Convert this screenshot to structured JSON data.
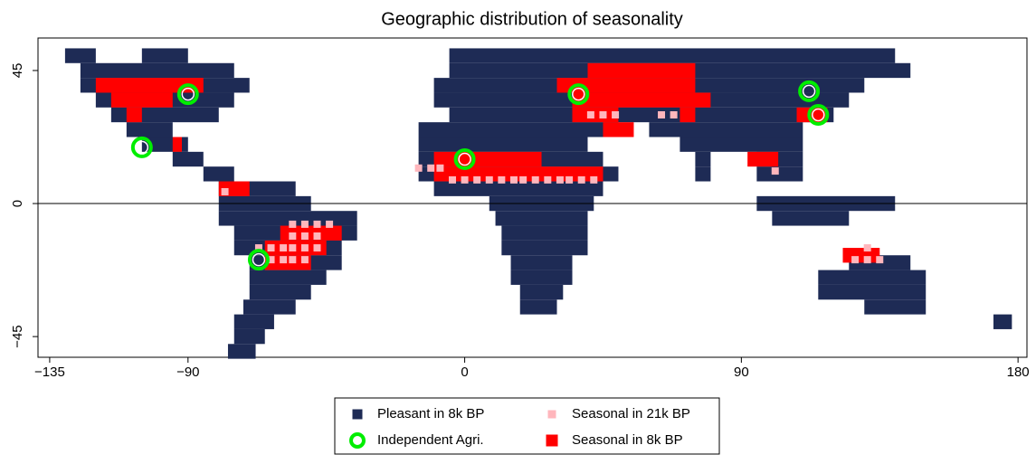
{
  "chart_data": {
    "type": "map-cells",
    "title": "Geographic distribution of seasonality",
    "xlim": [
      -138.8,
      182.9
    ],
    "ylim": [
      -52,
      56
    ],
    "xticks": [
      {
        "value": -135,
        "label": "−135"
      },
      {
        "value": -90,
        "label": "−90"
      },
      0,
      90,
      180
    ],
    "yticks": [
      {
        "value": -45,
        "label": "−45"
      },
      0,
      45
    ],
    "hline": 0,
    "legend": "bottom",
    "series": [
      {
        "name": "Pleasant in 8k BP",
        "color": "#1e2b55",
        "marker": "run",
        "y": [
          50,
          50,
          45,
          40,
          35,
          30,
          25,
          20,
          15,
          10,
          5,
          0,
          -5,
          -10,
          -15,
          -20,
          -25,
          -30,
          -35,
          -40,
          -45,
          -50,
          50,
          45,
          40,
          35,
          30,
          25,
          25,
          20,
          20,
          15,
          15,
          15,
          10,
          10,
          10,
          5,
          0,
          -5,
          -10,
          -15,
          -20,
          -25,
          -30,
          -35,
          0,
          -5,
          -20,
          -25,
          -30,
          -35,
          -40
        ],
        "x_start": [
          -130,
          -105,
          -125,
          -125,
          -120,
          -115,
          -110,
          -105,
          -95,
          -85,
          -80,
          -80,
          -80,
          -75,
          -75,
          -70,
          -70,
          -70,
          -72,
          -75,
          -75,
          -77,
          -5,
          -5,
          -10,
          -10,
          -5,
          -15,
          60,
          -15,
          70,
          -15,
          75,
          95,
          -15,
          75,
          95,
          -10,
          8,
          10,
          12,
          12,
          15,
          15,
          18,
          18,
          95,
          100,
          125,
          115,
          115,
          130,
          172
        ],
        "x_end": [
          -120,
          -90,
          -75,
          -70,
          -75,
          -80,
          -95,
          -90,
          -85,
          -75,
          -55,
          -50,
          -35,
          -35,
          -40,
          -40,
          -45,
          -50,
          -55,
          -62,
          -65,
          -68,
          140,
          145,
          130,
          125,
          120,
          50,
          110,
          40,
          110,
          45,
          80,
          110,
          50,
          80,
          110,
          45,
          42,
          40,
          40,
          40,
          35,
          35,
          32,
          30,
          140,
          125,
          145,
          150,
          150,
          150,
          178
        ]
      },
      {
        "name": "Seasonal in 21k BP",
        "color": "#ffb6bc",
        "marker": "square",
        "x": [
          -4,
          0,
          4,
          8,
          12,
          16,
          19,
          23,
          27,
          31,
          34,
          38,
          42,
          -15,
          -11,
          -8,
          -78,
          -56,
          -52,
          -48,
          -44,
          -56,
          -52,
          -48,
          -67,
          -63,
          -59,
          -56,
          -52,
          -48,
          -63,
          -59,
          -56,
          -52,
          41,
          45,
          49,
          64,
          68,
          101,
          127,
          131,
          135,
          131
        ],
        "y": [
          8,
          8,
          8,
          8,
          8,
          8,
          8,
          8,
          8,
          8,
          8,
          8,
          8,
          12,
          12,
          12,
          4,
          -7,
          -7,
          -7,
          -7,
          -11,
          -11,
          -11,
          -15,
          -15,
          -15,
          -15,
          -15,
          -15,
          -19,
          -19,
          -19,
          -19,
          30,
          30,
          30,
          30,
          30,
          11,
          -19,
          -19,
          -19,
          -15
        ]
      },
      {
        "name": "Independent Agri.",
        "color": "#00ee00",
        "marker": "ring",
        "x": [
          -90,
          -105,
          0,
          37,
          112,
          115,
          -67
        ],
        "y": [
          37,
          19,
          15,
          37,
          38,
          30,
          -19
        ]
      },
      {
        "name": "Seasonal in 8k BP",
        "color": "#ff0000",
        "marker": "run",
        "y": [
          40,
          35,
          30,
          45,
          40,
          35,
          30,
          30,
          15,
          10,
          5,
          -10,
          -15,
          -20,
          15,
          -17.5,
          30,
          20,
          25
        ],
        "x_start": [
          -120,
          -115,
          -110,
          40,
          30,
          35,
          35,
          70,
          -10,
          -10,
          -80,
          -60,
          -65,
          -65,
          92,
          123,
          108,
          -95,
          45
        ],
        "x_end": [
          -85,
          -95,
          -105,
          75,
          75,
          80,
          50,
          75,
          25,
          45,
          -70,
          -40,
          -45,
          -50,
          102,
          135,
          118,
          -92,
          55
        ]
      }
    ]
  }
}
